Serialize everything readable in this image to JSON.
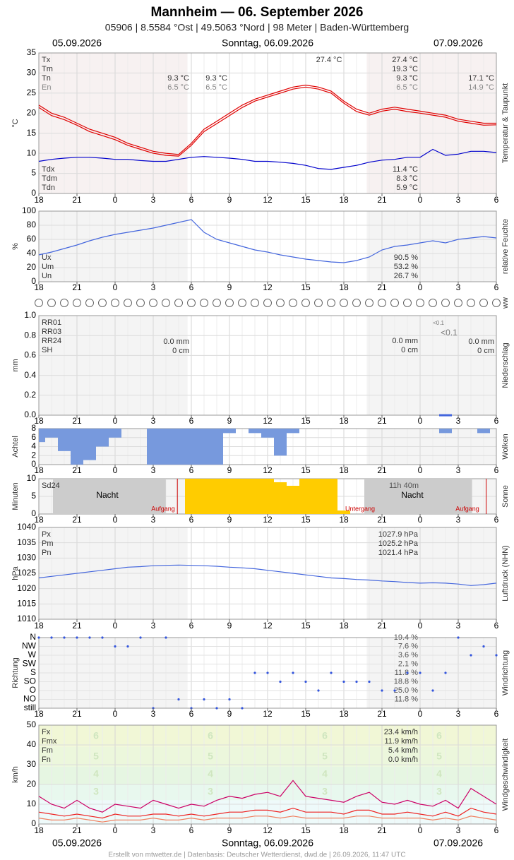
{
  "header": {
    "title": "Mannheim  —  06. September 2026",
    "subtitle": "05906  |  8.5584 °Ost  |  49.5063 °Nord  |  98 Meter  |  Baden-Württemberg",
    "date_left": "05.09.2026",
    "date_center": "Sonntag, 06.09.2026",
    "date_right": "07.09.2026",
    "footer": "Erstellt von mtwetter.de | Datenbasis: Deutscher Wetterdienst, dwd.de | 26.09.2026, 11:47 UTC"
  },
  "xtick_labels": [
    "18",
    "21",
    "0",
    "3",
    "6",
    "9",
    "12",
    "15",
    "18",
    "21",
    "0",
    "3",
    "6"
  ],
  "chart_data": [
    {
      "type": "line",
      "ylabel": "°C",
      "side_label": "Temperatur & Taupunkt",
      "ylim": [
        0,
        35
      ],
      "yticks": [
        0,
        5,
        10,
        15,
        20,
        25,
        30,
        35
      ],
      "series": [
        {
          "color": "#e00000",
          "values": [
            22,
            20,
            19,
            17.5,
            16,
            15,
            14,
            12.5,
            11.5,
            10.5,
            10,
            9.7,
            12.5,
            16,
            18,
            20,
            22,
            23.5,
            24.5,
            25.5,
            26.5,
            27,
            26.5,
            25.5,
            23,
            21,
            20,
            21,
            21.5,
            21,
            20.5,
            20,
            19.5,
            18.5,
            18,
            17.5,
            17.5
          ]
        },
        {
          "color": "#e00000",
          "values": [
            21.4,
            19.4,
            18.4,
            17,
            15.4,
            14.4,
            13.4,
            12,
            11,
            10,
            9.5,
            9.3,
            12,
            15.4,
            17.4,
            19.4,
            21.4,
            23,
            24,
            25,
            26,
            26.5,
            26,
            25,
            22.5,
            20.4,
            19.5,
            20.5,
            21,
            20.4,
            20,
            19.5,
            19,
            18,
            17.5,
            17,
            17.1
          ]
        },
        {
          "color": "#0000cc",
          "values": [
            8,
            8.5,
            8.8,
            9,
            9,
            8.8,
            8.5,
            8.5,
            8.2,
            8,
            8,
            8.5,
            9,
            9.2,
            9,
            8.8,
            8.5,
            8,
            8,
            7.8,
            7.5,
            7,
            6.2,
            6,
            6.5,
            7,
            7.8,
            8.3,
            8.5,
            9,
            9,
            11,
            9.5,
            9.8,
            10.5,
            10.5,
            10.2
          ]
        }
      ],
      "stats": [
        {
          "name": "Tx",
          "value": "27.4 °C"
        },
        {
          "name": "Tm",
          "value": "19.3 °C"
        },
        {
          "name": "Tn",
          "value": "9.3 °C"
        },
        {
          "name": "En",
          "value": "6.5 °C"
        }
      ],
      "stats_bottom": [
        {
          "name": "Tdx",
          "value": "11.4 °C"
        },
        {
          "name": "Tdm",
          "value": "8.3 °C"
        },
        {
          "name": "Tdn",
          "value": "5.9 °C"
        }
      ],
      "annotations": [
        "27.4 °C",
        "9.3 °C",
        "9.3 °C",
        "6.5 °C",
        "6.5 °C",
        "17.1 °C",
        "14.9 °C"
      ]
    },
    {
      "type": "line",
      "ylabel": "%",
      "side_label": "relative Feuchte",
      "ylim": [
        0,
        100
      ],
      "yticks": [
        0,
        20,
        40,
        60,
        80,
        100
      ],
      "series": [
        {
          "color": "#4466dd",
          "values": [
            38,
            42,
            47,
            52,
            58,
            63,
            67,
            70,
            73,
            76,
            80,
            84,
            88,
            70,
            60,
            55,
            50,
            45,
            42,
            38,
            35,
            32,
            30,
            28,
            27,
            30,
            35,
            45,
            50,
            52,
            55,
            58,
            55,
            60,
            62,
            64,
            62
          ]
        }
      ],
      "stats_bottom": [
        {
          "name": "Ux",
          "value": "90.5 %"
        },
        {
          "name": "Um",
          "value": "53.2 %"
        },
        {
          "name": "Un",
          "value": "26.7 %"
        }
      ]
    },
    {
      "type": "symbols",
      "side_label": "ww"
    },
    {
      "type": "bar",
      "ylabel": "mm",
      "side_label": "Niederschlag",
      "ylim": [
        0,
        1
      ],
      "yticks": [
        {
          "value": 0,
          "label": "0.0"
        },
        {
          "value": 0.2,
          "label": "0.2"
        },
        {
          "value": 0.4,
          "label": "0.4"
        },
        {
          "value": 0.6,
          "label": "0.6"
        },
        {
          "value": 0.8,
          "label": "0.8"
        },
        {
          "value": 1,
          "label": "1.0"
        }
      ],
      "series": [
        {
          "color": "#4466dd",
          "values": [
            0,
            0,
            0,
            0,
            0,
            0,
            0,
            0,
            0,
            0,
            0,
            0,
            0,
            0,
            0,
            0,
            0,
            0,
            0,
            0,
            0,
            0,
            0,
            0,
            0,
            0,
            0,
            0,
            0,
            0,
            0,
            0,
            0.01,
            0,
            0,
            0,
            0
          ]
        }
      ],
      "stats": [
        {
          "name": "RR01",
          "value": "<0.1"
        },
        {
          "name": "RR03",
          "value": "<0.1"
        },
        {
          "name": "RR24",
          "value": "0.0 mm"
        },
        {
          "name": "SH",
          "value": "0 cm"
        }
      ],
      "annotations": [
        "0.0 mm",
        "0 cm"
      ]
    },
    {
      "type": "cloud",
      "ylabel": "Achtel",
      "side_label": "Wolken",
      "ylim": [
        0,
        8
      ],
      "yticks": [
        0,
        2,
        4,
        6,
        8
      ],
      "series": [
        {
          "color": "#7799dd",
          "values": [
            3,
            2,
            5,
            8,
            7,
            4,
            2,
            0,
            0,
            8,
            8,
            8,
            8,
            8,
            8,
            1,
            0,
            1,
            2,
            6,
            1,
            0,
            0,
            0,
            0,
            0,
            0,
            0,
            0,
            0,
            0,
            0,
            1,
            0,
            0,
            1,
            0
          ]
        }
      ]
    },
    {
      "type": "bar",
      "ylabel": "Minuten",
      "side_label": "Sonne",
      "ylim": [
        0,
        10
      ],
      "yticks": [
        0,
        5,
        10
      ],
      "series": [
        {
          "color": "#ffcc00",
          "values": [
            0,
            0,
            0,
            0,
            0,
            0,
            0,
            0,
            0,
            0,
            0,
            0,
            10,
            10,
            10,
            10,
            10,
            10,
            10,
            9,
            8,
            10,
            10,
            10,
            1,
            0,
            0,
            0,
            0,
            0,
            0,
            0,
            0,
            0,
            0,
            0,
            0
          ]
        }
      ],
      "stats": [
        {
          "name": "Sd24",
          "value": "11h 40m"
        }
      ],
      "annotations": [
        "Nacht",
        "Nacht",
        "Aufgang",
        "Untergang",
        "Aufgang"
      ]
    },
    {
      "type": "line",
      "ylabel": "hPa",
      "side_label": "Luftdruck (NHN)",
      "ylim": [
        1010,
        1040
      ],
      "yticks": [
        1010,
        1015,
        1020,
        1025,
        1030,
        1035,
        1040
      ],
      "series": [
        {
          "color": "#4466dd",
          "values": [
            1023.5,
            1024,
            1024.5,
            1025,
            1025.5,
            1026,
            1026.5,
            1027,
            1027.2,
            1027.5,
            1027.6,
            1027.7,
            1027.6,
            1027.5,
            1027.3,
            1027,
            1026.8,
            1026.5,
            1026,
            1025.5,
            1025,
            1024.5,
            1024,
            1023.5,
            1023.3,
            1023,
            1022.8,
            1022.5,
            1022.3,
            1022,
            1021.8,
            1021.9,
            1021.8,
            1021.5,
            1021,
            1021.3,
            1021.8
          ]
        }
      ],
      "stats": [
        {
          "name": "Px",
          "value": "1027.9 hPa"
        },
        {
          "name": "Pm",
          "value": "1025.2 hPa"
        },
        {
          "name": "Pn",
          "value": "1021.4 hPa"
        }
      ]
    },
    {
      "type": "scatter",
      "ylabel": "Richtung",
      "side_label": "Windrichtung",
      "ycategories": [
        "still",
        "NO",
        "O",
        "SO",
        "S",
        "SW",
        "W",
        "NW",
        "N"
      ],
      "share_labels": [
        "11.8 %",
        "25.0 %",
        "18.8 %",
        "11.8 %",
        "2.1 %",
        "3.6 %",
        "7.6 %",
        "19.4 %"
      ],
      "series": [
        {
          "color": "#3355dd",
          "values": [
            "N",
            "N",
            "N",
            "N",
            "N",
            "N",
            "NW",
            "NW",
            "N",
            "still",
            "N",
            "NO",
            "still",
            "NO",
            "still",
            "NO",
            "still",
            "S",
            "S",
            "SO",
            "S",
            "SO",
            "O",
            "S",
            "SO",
            "SO",
            "SO",
            "O",
            "O",
            "S",
            "S",
            "O",
            "S",
            "N",
            "W",
            "NW",
            "W"
          ]
        }
      ]
    },
    {
      "type": "line",
      "ylabel": "km/h",
      "side_label": "Windgeschwindigkeit",
      "ylim": [
        0,
        50
      ],
      "yticks": [
        0,
        10,
        20,
        30,
        40,
        50
      ],
      "beaufort_labels": [
        "6",
        "5",
        "4",
        "3"
      ],
      "series": [
        {
          "color": "#cc0066",
          "values": [
            14,
            10,
            8,
            12,
            8,
            6,
            10,
            9,
            8,
            12,
            10,
            8,
            10,
            9,
            12,
            14,
            13,
            15,
            16,
            14,
            22,
            14,
            13,
            12,
            11,
            14,
            16,
            11,
            10,
            12,
            10,
            9,
            12,
            8,
            18,
            14,
            10
          ]
        },
        {
          "color": "#ee2222",
          "values": [
            6,
            5,
            4,
            5,
            4,
            3,
            5,
            4,
            4,
            5,
            5,
            4,
            5,
            4,
            5,
            6,
            6,
            7,
            7,
            6,
            8,
            6,
            6,
            6,
            5,
            7,
            7,
            5,
            5,
            6,
            5,
            4,
            6,
            4,
            8,
            6,
            5
          ]
        },
        {
          "color": "#f08060",
          "values": [
            3,
            2,
            2,
            3,
            2,
            1,
            2,
            2,
            2,
            3,
            2,
            2,
            3,
            2,
            3,
            3,
            3,
            4,
            4,
            3,
            4,
            3,
            3,
            3,
            3,
            4,
            4,
            3,
            3,
            3,
            3,
            2,
            3,
            2,
            4,
            3,
            2
          ]
        }
      ],
      "stats": [
        {
          "name": "Fx",
          "value": "23.4 km/h"
        },
        {
          "name": "Fmx",
          "value": "11.9 km/h"
        },
        {
          "name": "Fm",
          "value": "5.4 km/h"
        },
        {
          "name": "Fn",
          "value": "0.0 km/h"
        }
      ]
    }
  ]
}
